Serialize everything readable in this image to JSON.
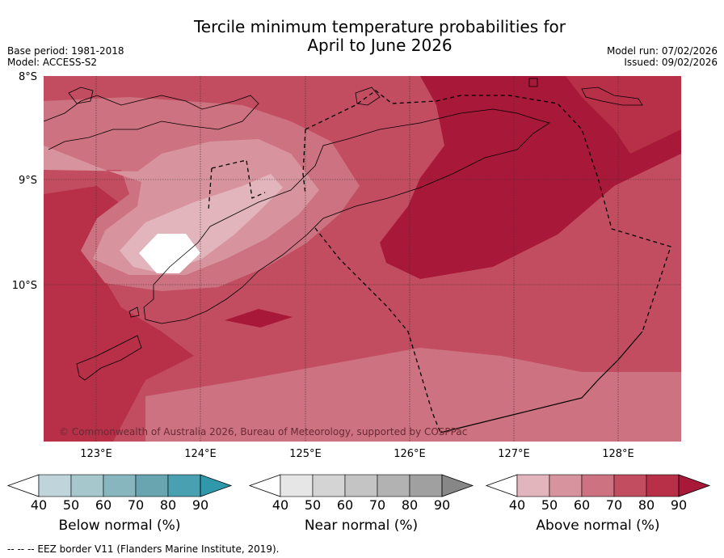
{
  "title_line1": "Tercile minimum temperature probabilities for",
  "title_line2": "April to June 2026",
  "base_period": "Base period: 1981-2018",
  "model": "Model: ACCESS-S2",
  "model_run": "Model run: 07/02/2026",
  "issued": "Issued: 09/02/2026",
  "lat_labels": [
    "8°S",
    "9°S",
    "10°S"
  ],
  "lon_labels": [
    "123°E",
    "124°E",
    "125°E",
    "126°E",
    "127°E",
    "128°E"
  ],
  "copyright": "© Commonwealth of Australia 2026, Bureau of Meteorology, supported by COSPPac",
  "colorbars": [
    {
      "label": "Below normal (%)",
      "ticks": [
        "40",
        "50",
        "60",
        "70",
        "80",
        "90"
      ],
      "colors": [
        "#c0d5db",
        "#a6c8cc",
        "#88b6bf",
        "#68a5b1",
        "#48a0b0",
        "#2f98aa"
      ]
    },
    {
      "label": "Near normal (%)",
      "ticks": [
        "40",
        "50",
        "60",
        "70",
        "80",
        "90"
      ],
      "colors": [
        "#e6e6e6",
        "#d4d4d4",
        "#c4c4c4",
        "#b2b2b2",
        "#a0a0a0",
        "#878787"
      ]
    },
    {
      "label": "Above normal (%)",
      "ticks": [
        "40",
        "50",
        "60",
        "70",
        "80",
        "90"
      ],
      "colors": [
        "#e2b5bd",
        "#d8949e",
        "#cd7280",
        "#c24d60",
        "#b83048",
        "#a81838"
      ]
    }
  ],
  "footer": "--  --  -- EEZ border V11 (Flanders Marine Institute, 2019)."
}
